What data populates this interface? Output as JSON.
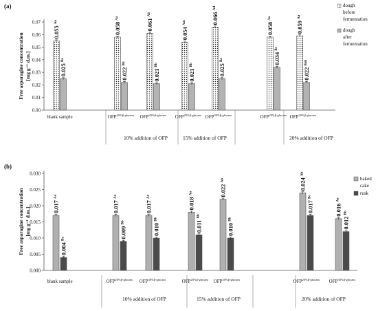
{
  "chart_data": [
    {
      "type": "bar",
      "panel_label": "(a)",
      "ylabel": "Free asparagine concentration",
      "ylabel_unit": "[mg g⁻¹ d.m.]",
      "ylim": [
        0,
        0.07
      ],
      "yticks": [
        "0.00",
        "0.01",
        "0.02",
        "0.03",
        "0.04",
        "0.05",
        "0.06",
        "0.07"
      ],
      "categories": [
        {
          "main": "blank sample",
          "sub": ""
        },
        {
          "main": "OFP",
          "sub": "20%β-glucans"
        },
        {
          "main": "OFP",
          "sub": "30%β-glucans"
        },
        {
          "main": "OFP",
          "sub": "20%β-glucans"
        },
        {
          "main": "OFP",
          "sub": "30%β-glucans"
        },
        {
          "main": "OFP",
          "sub": "20%β-glucans"
        },
        {
          "main": "OFP",
          "sub": "30%β-glucans"
        }
      ],
      "groups": [
        "10% addition of OFP",
        "15% addition of OFP",
        "20% addition of OFP"
      ],
      "series": [
        {
          "name": "dough before fermentation",
          "pattern": "dots",
          "values": [
            0.055,
            0.058,
            0.061,
            0.054,
            0.066,
            0.058,
            0.059
          ],
          "labels": [
            "0.055",
            "0.058",
            "0.061",
            "0.054",
            "0.066",
            "0.058",
            "0.059"
          ],
          "sup": [
            "Aa",
            "Aa",
            "Ab",
            "Aac",
            "Ad",
            "Aa",
            "Aa"
          ]
        },
        {
          "name": "dough after fermentation",
          "color": "#b3b3b3",
          "values": [
            0.025,
            0.022,
            0.021,
            0.021,
            0.025,
            0.034,
            0.022
          ],
          "labels": [
            "0.025",
            "0.022",
            "0.021",
            "0.021",
            "0.025",
            "0.034",
            "0.022"
          ],
          "sup": [
            "Ba",
            "Bb",
            "Bb",
            "Bb",
            "Ba",
            "Bc",
            "Bab"
          ]
        }
      ],
      "legend_labels": [
        "dough before fermentation",
        "dough after fermentation"
      ]
    },
    {
      "type": "bar",
      "panel_label": "(b)",
      "ylabel": "Free asparagine concentration",
      "ylabel_unit": "[mg g⁻¹ d.m.]",
      "ylim": [
        0,
        0.03
      ],
      "yticks": [
        "0.000",
        "0.005",
        "0.010",
        "0.015",
        "0.020",
        "0.025",
        "0.030"
      ],
      "categories": [
        {
          "main": "blank sample",
          "sub": ""
        },
        {
          "main": "OFP",
          "sub": "20%β-glucans"
        },
        {
          "main": "OFP",
          "sub": "30%β-glucans"
        },
        {
          "main": "OFP",
          "sub": "20%β-glucans"
        },
        {
          "main": "OFP",
          "sub": "30%β-glucans"
        },
        {
          "main": "OFP",
          "sub": "20%β-glucans"
        },
        {
          "main": "OFP",
          "sub": "30%β-glucans"
        }
      ],
      "groups": [
        "10% addition of OFP",
        "15% addition of OFP",
        "20% addition of OFP"
      ],
      "series": [
        {
          "name": "baked cake",
          "color": "#b0b0b0",
          "values": [
            0.017,
            0.017,
            0.017,
            0.018,
            0.022,
            0.024,
            0.016
          ],
          "labels": [
            "0.017",
            "0.017",
            "0.017",
            "0.018",
            "0.022",
            "0.024",
            "0.016"
          ],
          "sup": [
            "Aa",
            "Aa",
            "Aa",
            "Aa",
            "Ab",
            "Ab",
            "Aa"
          ]
        },
        {
          "name": "rusk",
          "color": "#4a4a4a",
          "values": [
            0.004,
            0.009,
            0.01,
            0.011,
            0.01,
            0.017,
            0.012
          ],
          "labels": [
            "0.004",
            "0.009",
            "0.010",
            "0.011",
            "0.010",
            "0.017",
            "0.012"
          ],
          "sup": [
            "Ba",
            "Bb",
            "Bb",
            "Bb",
            "Bb",
            "Bc",
            "Bb"
          ]
        }
      ],
      "legend_labels": [
        "baked cake",
        "rusk"
      ]
    }
  ]
}
